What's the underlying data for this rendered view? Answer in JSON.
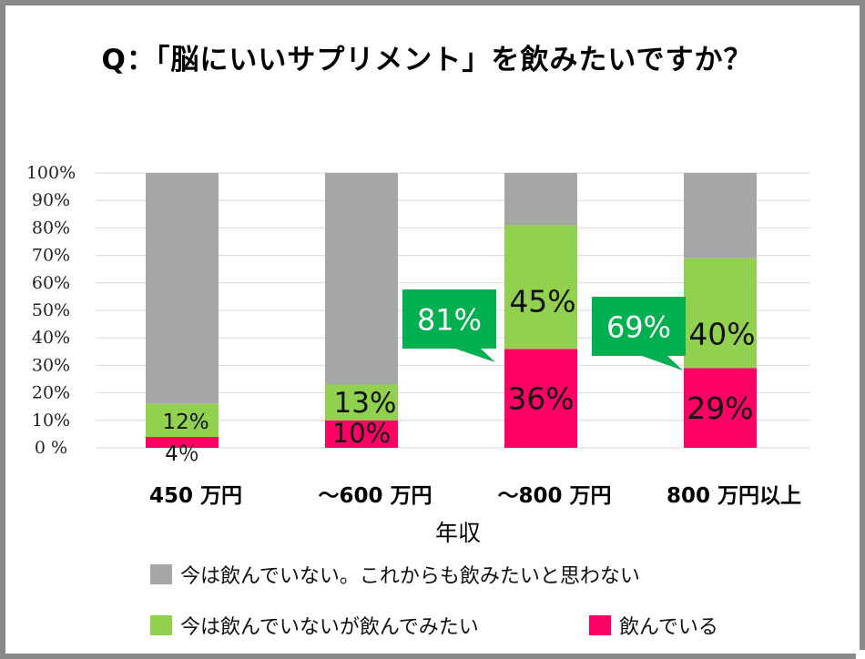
{
  "title": "Q：「脳にいいサプリメント」を飲みたいですか？",
  "colors": {
    "not_drinking": "#a6a6a6",
    "want_to_drink": "#92d050",
    "drinking": "#ff0066",
    "callout": "#00b050",
    "grid": "#d9d9d9"
  },
  "chart_data": {
    "type": "bar",
    "stacked": true,
    "title": "Q：「脳にいいサプリメント」を飲みたいですか？",
    "xlabel": "年収",
    "ylabel": "",
    "ylim": [
      0,
      100
    ],
    "yticks": [
      "0 %",
      "10%",
      "20%",
      "30%",
      "40%",
      "50%",
      "60%",
      "70%",
      "80%",
      "90%",
      "100%"
    ],
    "categories": [
      "450 万円",
      "～600 万円",
      "～800 万円",
      "800 万円以上"
    ],
    "series": [
      {
        "name": "飲んでいる",
        "values": [
          4,
          10,
          36,
          29
        ],
        "labels": [
          "4％",
          "10%",
          "36%",
          "29%"
        ]
      },
      {
        "name": "今は飲んでいないが飲んでみたい",
        "values": [
          12,
          13,
          45,
          40
        ],
        "labels": [
          "12%",
          "13%",
          "45%",
          "40%"
        ]
      },
      {
        "name": "今は飲んでいない。これからも飲みたいと思わない",
        "values": [
          84,
          77,
          19,
          31
        ]
      }
    ],
    "callouts": [
      {
        "category": "～800 万円",
        "text": "81%"
      },
      {
        "category": "800 万円以上",
        "text": "69%"
      }
    ],
    "grid": true,
    "legend_position": "bottom"
  }
}
